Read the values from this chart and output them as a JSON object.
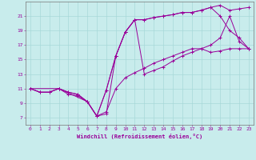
{
  "background_color": "#c8ecec",
  "grid_color": "#a8d8d8",
  "line_color": "#990099",
  "xlabel": "Windchill (Refroidissement éolien,°C)",
  "xlim": [
    -0.5,
    23.5
  ],
  "ylim": [
    6.0,
    23.0
  ],
  "yticks": [
    7,
    9,
    11,
    13,
    15,
    17,
    19,
    21
  ],
  "xticks": [
    0,
    1,
    2,
    3,
    4,
    5,
    6,
    7,
    8,
    9,
    10,
    11,
    12,
    13,
    14,
    15,
    16,
    17,
    18,
    19,
    20,
    21,
    22,
    23
  ],
  "lines": [
    {
      "x": [
        0,
        1,
        2,
        3,
        4,
        5,
        6,
        7,
        8,
        9,
        10,
        11,
        12,
        13,
        14,
        15,
        16,
        17,
        18,
        19,
        20,
        21,
        22,
        23
      ],
      "y": [
        11,
        10.5,
        10.5,
        11,
        10.5,
        10.2,
        9.2,
        7.2,
        10.8,
        15.5,
        18.8,
        20.5,
        20.5,
        20.8,
        21.0,
        21.2,
        21.5,
        21.5,
        21.8,
        22.2,
        22.5,
        21.8,
        22.0,
        22.2
      ]
    },
    {
      "x": [
        0,
        1,
        2,
        3,
        4,
        5,
        6,
        7,
        8,
        9,
        10,
        11,
        12,
        13,
        14,
        15,
        16,
        17,
        18,
        19,
        20,
        21,
        22,
        23
      ],
      "y": [
        11,
        10.5,
        10.5,
        11,
        10.5,
        10.2,
        9.2,
        7.2,
        10.8,
        15.5,
        18.8,
        20.5,
        20.5,
        20.8,
        21.0,
        21.2,
        21.5,
        21.5,
        21.8,
        22.2,
        21.0,
        19.0,
        18.0,
        16.5
      ]
    },
    {
      "x": [
        0,
        1,
        2,
        3,
        4,
        5,
        6,
        7,
        8,
        9,
        10,
        11,
        12,
        13,
        14,
        15,
        16,
        17,
        18,
        19,
        20,
        21,
        22,
        23
      ],
      "y": [
        11,
        10.5,
        10.5,
        11,
        10.2,
        10.0,
        9.2,
        7.2,
        7.8,
        11.0,
        12.5,
        13.2,
        13.8,
        14.5,
        15.0,
        15.5,
        16.0,
        16.5,
        16.5,
        16.0,
        16.2,
        16.5,
        16.5,
        16.5
      ]
    },
    {
      "x": [
        0,
        3,
        6,
        7,
        8,
        9,
        10,
        11,
        12,
        13,
        14,
        15,
        16,
        17,
        18,
        19,
        20,
        21,
        22,
        23
      ],
      "y": [
        11,
        11,
        9.2,
        7.2,
        7.5,
        15.5,
        18.8,
        20.5,
        13.0,
        13.5,
        14.0,
        14.8,
        15.5,
        16.0,
        16.5,
        17.0,
        18.0,
        21.0,
        17.5,
        16.5
      ]
    }
  ]
}
